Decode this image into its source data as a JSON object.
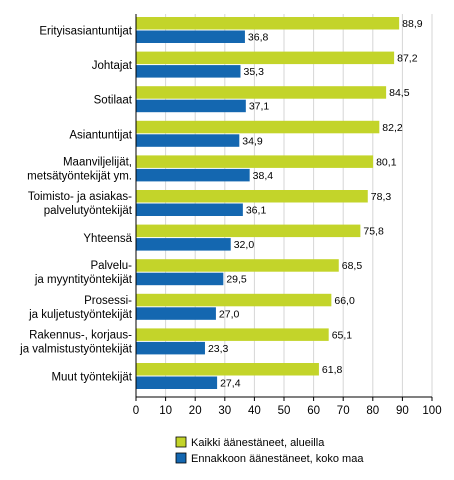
{
  "chart_data": {
    "type": "bar",
    "orientation": "horizontal",
    "categories": [
      [
        "Erityisasiantuntijat"
      ],
      [
        "Johtajat"
      ],
      [
        "Sotilaat"
      ],
      [
        "Asiantuntijat"
      ],
      [
        "Maanviljelijät,",
        "metsätyöntekijät ym."
      ],
      [
        "Toimisto- ja asiakas-",
        "palvelutyöntekijät"
      ],
      [
        "Yhteensä"
      ],
      [
        "Palvelu-",
        "ja myyntityöntekijät"
      ],
      [
        "Prosessi-",
        "ja kuljetustyöntekijät"
      ],
      [
        "Rakennus-, korjaus-",
        "ja valmistustyöntekijät"
      ],
      [
        "Muut työntekijät"
      ]
    ],
    "series": [
      {
        "name": "Kaikki äänestäneet, alueilla",
        "color": "#c3d42a",
        "values": [
          88.9,
          87.2,
          84.5,
          82.2,
          80.1,
          78.3,
          75.8,
          68.5,
          66.0,
          65.1,
          61.8
        ],
        "labels": [
          "88,9",
          "87,2",
          "84,5",
          "82,2",
          "80,1",
          "78,3",
          "75,8",
          "68,5",
          "66,0",
          "65,1",
          "61,8"
        ]
      },
      {
        "name": "Ennakkoon äänestäneet, koko maa",
        "color": "#1467b0",
        "values": [
          36.8,
          35.3,
          37.1,
          34.9,
          38.4,
          36.1,
          32.0,
          29.5,
          27.0,
          23.3,
          27.4
        ],
        "labels": [
          "36,8",
          "35,3",
          "37,1",
          "34,9",
          "38,4",
          "36,1",
          "32,0",
          "29,5",
          "27,0",
          "23,3",
          "27,4"
        ]
      }
    ],
    "xlim": [
      0,
      100
    ],
    "xticks": [
      0,
      10,
      20,
      30,
      40,
      50,
      60,
      70,
      80,
      90,
      100
    ],
    "grid": "vertical",
    "legend": "bottom"
  }
}
